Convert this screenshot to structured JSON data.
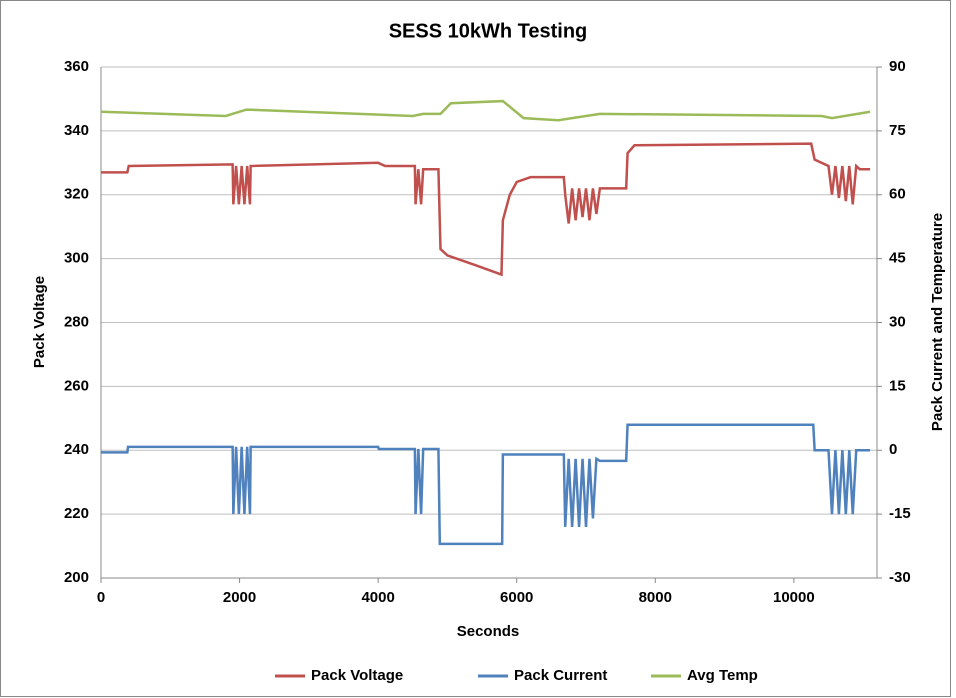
{
  "chart_data": {
    "type": "line",
    "title": "SESS 10kWh Testing",
    "xlabel": "Seconds",
    "ylabel": "Pack Voltage",
    "y2label": "Pack Current and Temperature",
    "xlim": [
      0,
      11200
    ],
    "xticks": [
      0,
      2000,
      4000,
      6000,
      8000,
      10000
    ],
    "ylim": [
      200,
      360
    ],
    "yticks": [
      200,
      220,
      240,
      260,
      280,
      300,
      320,
      340,
      360
    ],
    "y2lim": [
      -30,
      90
    ],
    "y2ticks": [
      -30,
      -15,
      0,
      15,
      30,
      45,
      60,
      75,
      90
    ],
    "grid": true,
    "legend": "bottom",
    "series": [
      {
        "name": "Pack Voltage",
        "color": "#c0504d",
        "x": [
          0,
          380,
          400,
          1900,
          1910,
          1950,
          1990,
          2030,
          2070,
          2110,
          2150,
          2160,
          4000,
          4100,
          4530,
          4540,
          4580,
          4620,
          4650,
          4870,
          4900,
          5000,
          5400,
          5780,
          5800,
          5900,
          6000,
          6200,
          6680,
          6700,
          6750,
          6800,
          6850,
          6900,
          6950,
          7000,
          7050,
          7100,
          7150,
          7200,
          7580,
          7600,
          7700,
          10250,
          10300,
          10500,
          10550,
          10600,
          10650,
          10700,
          10750,
          10800,
          10850,
          10900,
          10950,
          11100
        ],
        "values": [
          327,
          327,
          329,
          329.5,
          317,
          329,
          317,
          329,
          317,
          329,
          317,
          329,
          330,
          329,
          329,
          317,
          328,
          317,
          328,
          328,
          303,
          301,
          298,
          295,
          312,
          320,
          324,
          325.5,
          325.5,
          320,
          311,
          322,
          312,
          322,
          313,
          322,
          312,
          322,
          314,
          322,
          322,
          333,
          335.5,
          336,
          331,
          329,
          320,
          329,
          319,
          329,
          318,
          329,
          317,
          329,
          328,
          328
        ]
      },
      {
        "name": "Pack Current",
        "color": "#4f81bd",
        "axis": "y2",
        "x": [
          0,
          380,
          390,
          1900,
          1910,
          1950,
          1990,
          2030,
          2070,
          2110,
          2150,
          2160,
          4000,
          4010,
          4530,
          4540,
          4580,
          4620,
          4650,
          4660,
          4870,
          4890,
          5790,
          5800,
          6680,
          6700,
          6750,
          6800,
          6850,
          6900,
          6950,
          7000,
          7050,
          7100,
          7150,
          7200,
          7580,
          7600,
          10280,
          10300,
          10500,
          10550,
          10600,
          10650,
          10700,
          10750,
          10800,
          10850,
          10900,
          10950,
          11100
        ],
        "values": [
          -0.5,
          -0.5,
          0.8,
          0.8,
          -15,
          0.8,
          -15,
          0.8,
          -15,
          0.8,
          -15,
          0.8,
          0.8,
          0.3,
          0.3,
          -15,
          0.3,
          -15,
          0.3,
          0.3,
          0.3,
          -22,
          -22,
          -1,
          -1,
          -18,
          -2,
          -18,
          -2,
          -18,
          -2,
          -18,
          -2,
          -16,
          -2,
          -2.5,
          -2.5,
          6,
          6,
          0,
          0,
          -15,
          0,
          -15,
          0,
          -15,
          0,
          -15,
          0,
          0,
          0
        ]
      },
      {
        "name": "Avg Temp",
        "color": "#9bbb59",
        "axis": "y2",
        "x": [
          0,
          1800,
          2100,
          4500,
          4650,
          4900,
          5050,
          5800,
          6100,
          6600,
          7200,
          10400,
          10550,
          11100
        ],
        "values": [
          79.5,
          78.5,
          80,
          78.5,
          79,
          79,
          81.5,
          82,
          78,
          77.5,
          79,
          78.5,
          78,
          79.5
        ]
      }
    ]
  }
}
